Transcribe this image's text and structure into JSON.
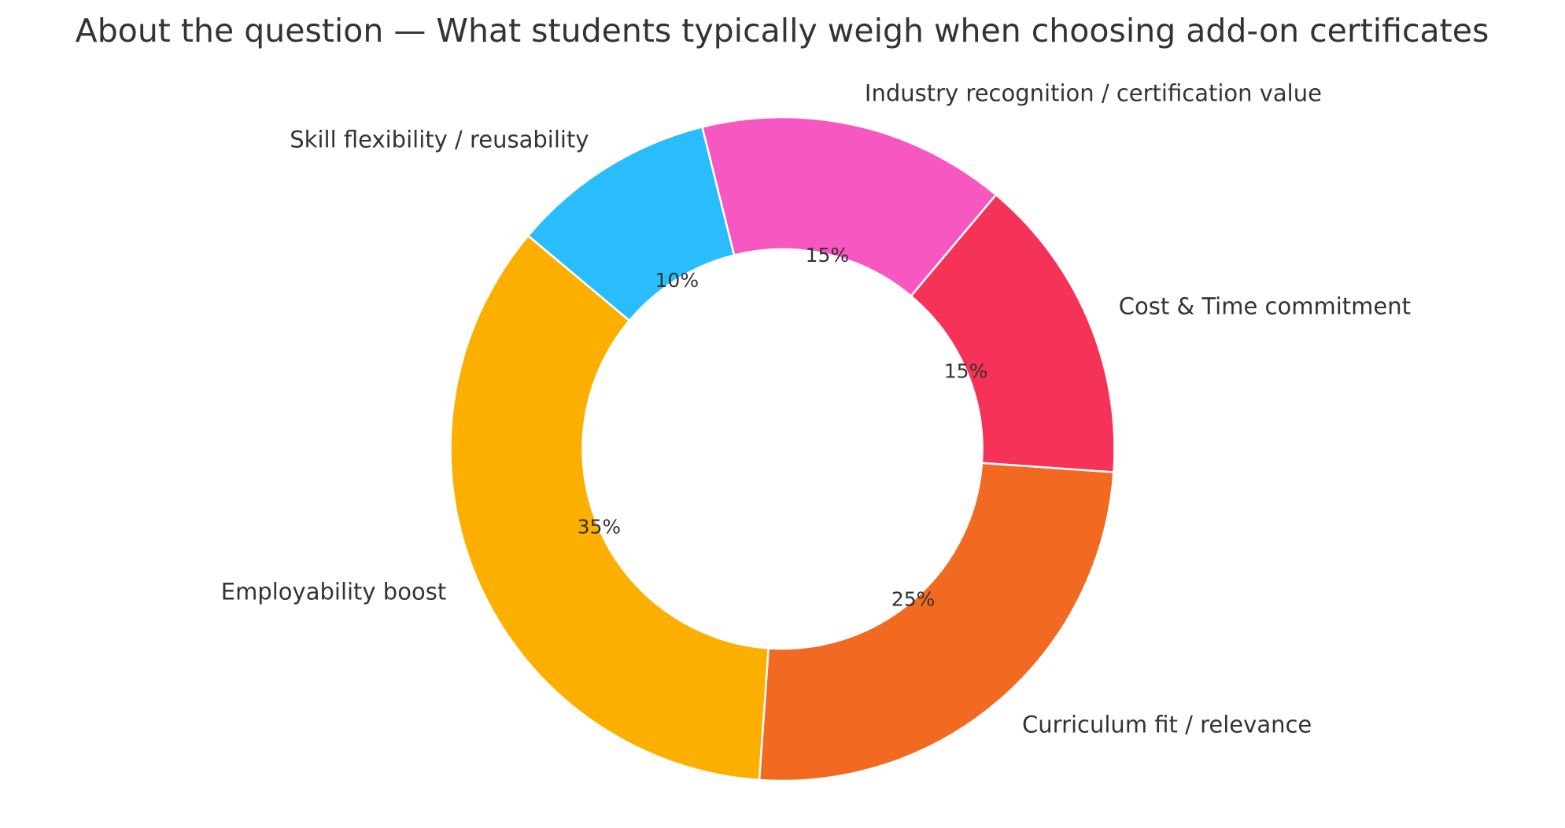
{
  "chart_data": {
    "type": "pie",
    "variant": "donut",
    "title": "About the question — What students typically weigh when choosing add-on certificates",
    "categories": [
      "Employability boost",
      "Curriculum fit / relevance",
      "Cost & Time commitment",
      "Industry recognition / certification value",
      "Skill flexibility / reusability"
    ],
    "values": [
      35,
      25,
      15,
      15,
      10
    ],
    "value_labels": [
      "35%",
      "25%",
      "15%",
      "15%",
      "10%"
    ],
    "colors": [
      "#FDAF00",
      "#F26A21",
      "#F53257",
      "#F757C1",
      "#2ABDFD"
    ],
    "start_angle_deg": 140,
    "direction": "counterclockwise",
    "legend": "none"
  }
}
